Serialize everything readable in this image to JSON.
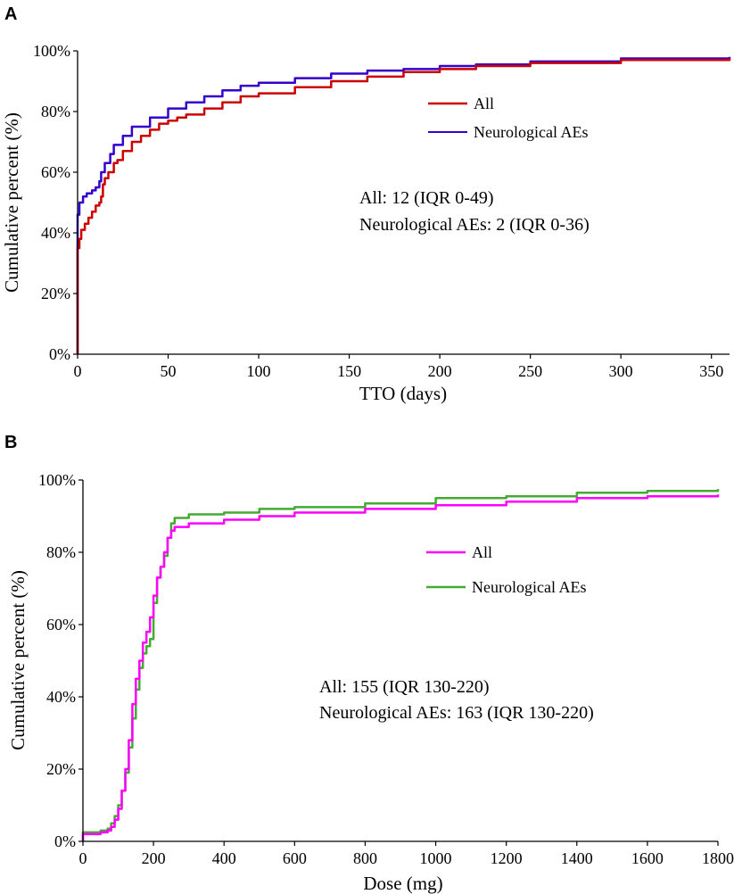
{
  "chart_data": [
    {
      "panel": "A",
      "type": "line",
      "title": "",
      "xlabel": "TTO (days)",
      "ylabel": "Cumulative percent (%)",
      "xlim": [
        0,
        360
      ],
      "ylim": [
        0,
        100
      ],
      "x_ticks": [
        "0",
        "50",
        "100",
        "150",
        "200",
        "250",
        "300",
        "350"
      ],
      "x_tick_values": [
        0,
        50,
        100,
        150,
        200,
        250,
        300,
        350
      ],
      "y_ticks": [
        "0%",
        "20%",
        "40%",
        "60%",
        "80%",
        "100%"
      ],
      "y_tick_values": [
        0,
        20,
        40,
        60,
        80,
        100
      ],
      "grid": false,
      "legend_position": "top-right",
      "annotations": [
        "All: 12 (IQR 0-49)",
        "Neurological AEs: 2 (IQR 0-36)"
      ],
      "series": [
        {
          "name": "All",
          "color": "#cc0000",
          "x": [
            0,
            0,
            1,
            2,
            4,
            6,
            8,
            10,
            12,
            13,
            14,
            15,
            17,
            20,
            22,
            25,
            30,
            35,
            40,
            45,
            50,
            55,
            60,
            70,
            80,
            90,
            100,
            120,
            140,
            160,
            180,
            200,
            220,
            250,
            300,
            360
          ],
          "y": [
            0,
            35,
            38,
            41,
            43,
            45,
            47,
            49,
            50,
            52,
            56,
            58,
            60,
            63,
            64,
            67,
            70,
            72,
            74,
            76,
            77,
            78,
            79,
            81,
            83,
            85,
            86,
            88,
            90,
            91.5,
            93,
            94,
            95,
            96,
            97,
            97.5
          ]
        },
        {
          "name": "Neurological AEs",
          "color": "#3300cc",
          "x": [
            0,
            0,
            1,
            3,
            5,
            8,
            10,
            12,
            13,
            15,
            18,
            20,
            25,
            30,
            40,
            50,
            60,
            70,
            80,
            90,
            100,
            120,
            140,
            160,
            180,
            200,
            220,
            250,
            300,
            360
          ],
          "y": [
            0,
            46,
            50,
            52,
            53,
            54,
            55,
            57,
            60,
            63,
            66,
            69,
            72,
            75,
            78,
            81,
            83,
            85,
            87,
            88.5,
            89.5,
            91,
            92.5,
            93.5,
            94,
            95,
            95.5,
            96.5,
            97.5,
            98
          ]
        }
      ]
    },
    {
      "panel": "B",
      "type": "line",
      "title": "",
      "xlabel": "Dose (mg)",
      "ylabel": "Cumulative percent (%)",
      "xlim": [
        0,
        1800
      ],
      "ylim": [
        0,
        100
      ],
      "x_ticks": [
        "0",
        "200",
        "400",
        "600",
        "800",
        "1000",
        "1200",
        "1400",
        "1600",
        "1800"
      ],
      "x_tick_values": [
        0,
        200,
        400,
        600,
        800,
        1000,
        1200,
        1400,
        1600,
        1800
      ],
      "y_ticks": [
        "0%",
        "20%",
        "40%",
        "60%",
        "80%",
        "100%"
      ],
      "y_tick_values": [
        0,
        20,
        40,
        60,
        80,
        100
      ],
      "grid": false,
      "legend_position": "right",
      "annotations": [
        "All: 155 (IQR 130-220)",
        "Neurological AEs: 163 (IQR 130-220)"
      ],
      "series": [
        {
          "name": "All",
          "color": "#ff00ff",
          "x": [
            0,
            0,
            50,
            70,
            80,
            90,
            100,
            110,
            120,
            130,
            140,
            150,
            160,
            170,
            180,
            190,
            200,
            210,
            220,
            230,
            240,
            250,
            260,
            300,
            400,
            500,
            600,
            800,
            1000,
            1200,
            1400,
            1600,
            1800
          ],
          "y": [
            0,
            2,
            2.5,
            3,
            4,
            6,
            9,
            14,
            20,
            28,
            38,
            45,
            50,
            55,
            58,
            62,
            68,
            73,
            76,
            80,
            84,
            86,
            87,
            88,
            89,
            90,
            91,
            92,
            93,
            94,
            95,
            95.5,
            96
          ]
        },
        {
          "name": "Neurological AEs",
          "color": "#44aa33",
          "x": [
            0,
            0,
            50,
            70,
            80,
            90,
            100,
            110,
            120,
            130,
            140,
            150,
            160,
            170,
            180,
            190,
            200,
            210,
            220,
            230,
            240,
            250,
            260,
            300,
            400,
            500,
            600,
            800,
            1000,
            1200,
            1400,
            1600,
            1800
          ],
          "y": [
            0,
            2.5,
            3,
            3.5,
            5,
            7,
            10,
            14,
            19,
            26,
            34,
            42,
            48,
            52,
            54,
            56,
            66,
            73,
            76,
            79,
            84,
            88,
            89.5,
            90.5,
            91,
            92,
            92.5,
            93.5,
            95,
            95.5,
            96.5,
            97,
            97.5
          ]
        }
      ]
    }
  ]
}
